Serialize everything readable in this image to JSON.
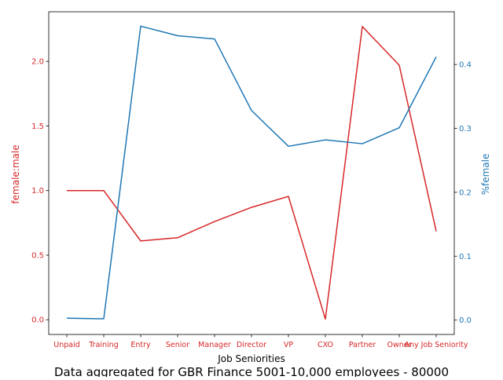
{
  "chart_data": {
    "type": "line",
    "title": "Data aggregated for GBR Finance 5001-10,000 employees - 80000",
    "xlabel": "Job Seniorities",
    "categories": [
      "Unpaid",
      "Training",
      "Entry",
      "Senior",
      "Manager",
      "Director",
      "VP",
      "CXO",
      "Partner",
      "Owner",
      "Any Job Seniority"
    ],
    "series": [
      {
        "name": "female:male",
        "axis": "left",
        "color": "#d62728",
        "values": [
          1.0,
          1.0,
          0.61,
          0.635,
          0.76,
          0.87,
          0.955,
          0.005,
          2.27,
          1.97,
          0.685
        ]
      },
      {
        "name": "%female",
        "axis": "right",
        "color": "#1f77b4",
        "values": [
          0.003,
          0.002,
          0.46,
          0.445,
          0.44,
          0.328,
          0.272,
          0.282,
          0.276,
          0.301,
          0.412
        ]
      }
    ],
    "y_left": {
      "label": "female:male",
      "ylim": [
        -0.114,
        2.384
      ],
      "ticks": [
        0.0,
        0.5,
        1.0,
        1.5,
        2.0
      ],
      "tick_labels": [
        "0.0",
        "0.5",
        "1.0",
        "1.5",
        "2.0"
      ],
      "color": "#d62728"
    },
    "y_right": {
      "label": "%female",
      "ylim": [
        -0.0225,
        0.4825
      ],
      "ticks": [
        0.0,
        0.1,
        0.2,
        0.3,
        0.4
      ],
      "tick_labels": [
        "0.0",
        "0.1",
        "0.2",
        "0.3",
        "0.4"
      ],
      "color": "#1f77b4"
    },
    "x_tick_color": "#d62728",
    "grid": false
  }
}
